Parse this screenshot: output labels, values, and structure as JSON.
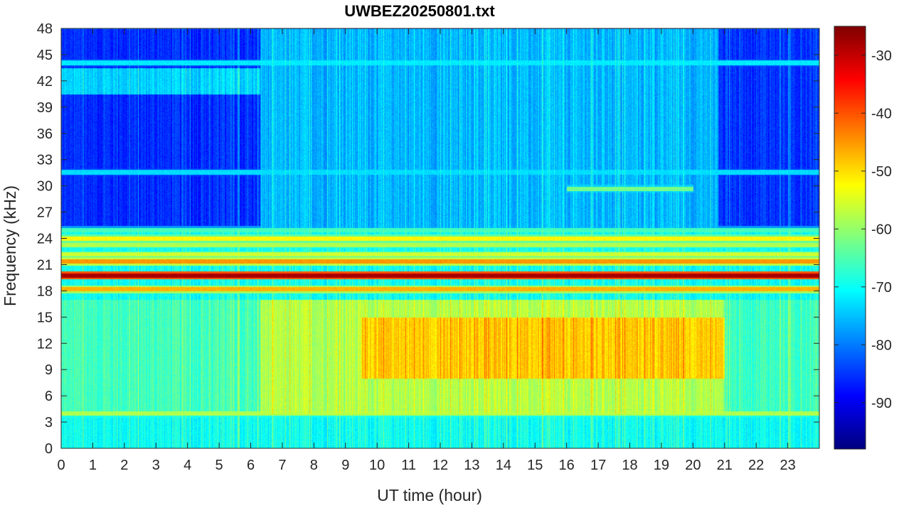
{
  "chart_data": {
    "type": "heatmap",
    "title": "UWBEZ20250801.txt",
    "xlabel": "UT time (hour)",
    "ylabel": "Frequency (kHz)",
    "xlim": [
      0,
      24
    ],
    "ylim": [
      0,
      48
    ],
    "x_ticks": [
      "0",
      "1",
      "2",
      "3",
      "4",
      "5",
      "6",
      "7",
      "8",
      "9",
      "10",
      "11",
      "12",
      "13",
      "14",
      "15",
      "16",
      "17",
      "18",
      "19",
      "20",
      "21",
      "22",
      "23"
    ],
    "y_ticks": [
      "0",
      "3",
      "6",
      "9",
      "12",
      "15",
      "18",
      "21",
      "24",
      "27",
      "30",
      "33",
      "36",
      "39",
      "42",
      "45",
      "48"
    ],
    "colorbar": {
      "colormap": "jet",
      "range": [
        -98,
        -25
      ],
      "ticks": [
        "-90",
        "-80",
        "-70",
        "-60",
        "-50",
        "-40",
        "-30"
      ]
    },
    "background_levels": [
      {
        "freq_range": [
          0,
          4
        ],
        "time_range": [
          0,
          24
        ],
        "value": -70
      },
      {
        "freq_range": [
          4,
          17
        ],
        "time_range": [
          0,
          6.3
        ],
        "value": -66
      },
      {
        "freq_range": [
          4,
          17
        ],
        "time_range": [
          6.3,
          21
        ],
        "value": -58
      },
      {
        "freq_range": [
          8,
          15
        ],
        "time_range": [
          9.5,
          21
        ],
        "value": -49
      },
      {
        "freq_range": [
          4,
          17
        ],
        "time_range": [
          21,
          24
        ],
        "value": -66
      },
      {
        "freq_range": [
          17,
          25
        ],
        "time_range": [
          0,
          24
        ],
        "value": -70
      },
      {
        "freq_range": [
          25,
          48
        ],
        "time_range": [
          0,
          6.3
        ],
        "value": -86
      },
      {
        "freq_range": [
          25,
          48
        ],
        "time_range": [
          6.3,
          20.8
        ],
        "value": -76
      },
      {
        "freq_range": [
          25,
          48
        ],
        "time_range": [
          20.8,
          24
        ],
        "value": -85
      },
      {
        "freq_range": [
          40.5,
          43.5
        ],
        "time_range": [
          0,
          6.3
        ],
        "value": -74
      }
    ],
    "carrier_lines": [
      {
        "freq": 19.8,
        "time_range": [
          0,
          24
        ],
        "value": -28
      },
      {
        "freq": 21.4,
        "time_range": [
          0,
          24
        ],
        "value": -45
      },
      {
        "freq": 18.2,
        "time_range": [
          0,
          24
        ],
        "value": -47
      },
      {
        "freq": 24.0,
        "time_range": [
          0,
          24
        ],
        "value": -52
      },
      {
        "freq": 22.2,
        "time_range": [
          0,
          24
        ],
        "value": -56
      },
      {
        "freq": 23.3,
        "time_range": [
          0,
          24
        ],
        "value": -58
      },
      {
        "freq": 4.0,
        "time_range": [
          0,
          24
        ],
        "value": -58
      },
      {
        "freq": 44.1,
        "time_range": [
          0,
          24
        ],
        "value": -72
      },
      {
        "freq": 31.6,
        "time_range": [
          0,
          24
        ],
        "value": -73
      },
      {
        "freq": 29.7,
        "time_range": [
          16,
          20
        ],
        "value": -62
      },
      {
        "freq": 25.0,
        "time_range": [
          0,
          24
        ],
        "value": -66
      }
    ]
  }
}
